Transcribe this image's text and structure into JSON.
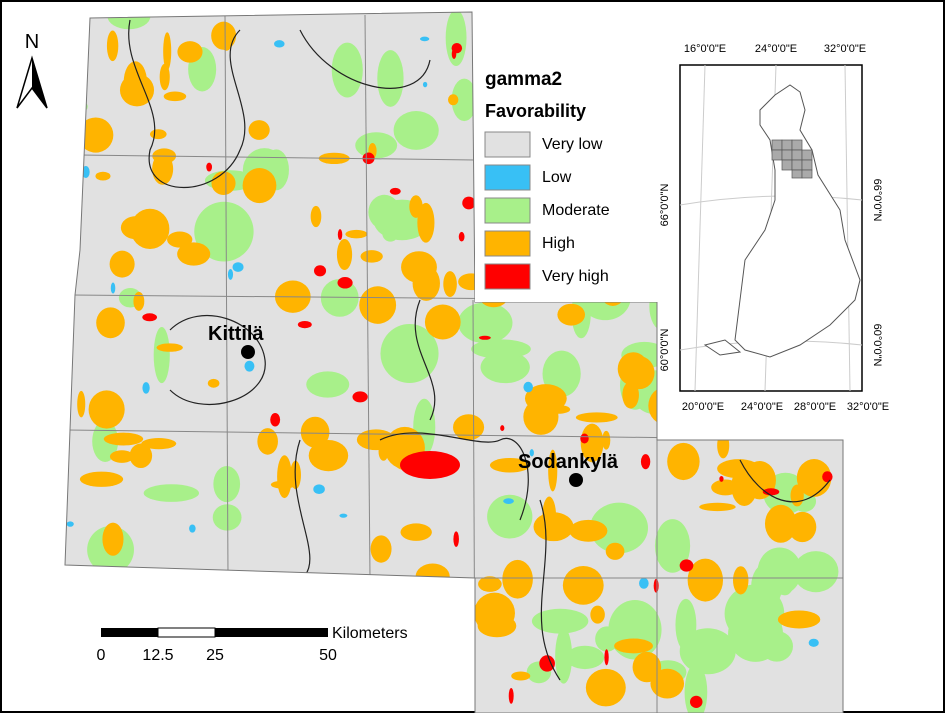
{
  "north": "N",
  "legend": {
    "title": "gamma2",
    "subtitle": "Favorability",
    "items": [
      "Very low",
      "Low",
      "Moderate",
      "High",
      "Very high"
    ]
  },
  "places": [
    "Kittilä",
    "Sodankylä"
  ],
  "scale_bar": {
    "unit": "Kilometers",
    "labels": [
      0,
      12.5,
      25,
      50
    ]
  },
  "inset": {
    "top_labels": [
      "16°0'0\"E",
      "24°0'0\"E",
      "32°0'0\"E"
    ],
    "left_labels": [
      "66°0'0\"N",
      "60°0'0\"N"
    ],
    "right_labels": [
      "66°0'0\"N",
      "60°0'0\"N"
    ],
    "bottom_labels": [
      "20°0'0\"E",
      "24°0'0\"E",
      "28°0'0\"E",
      "32°0'0\"E"
    ]
  }
}
